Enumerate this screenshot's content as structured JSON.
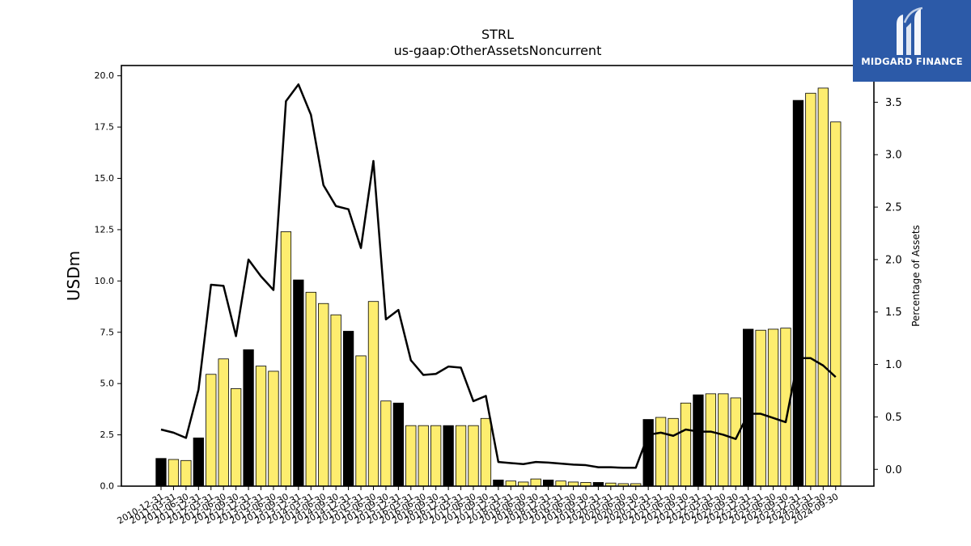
{
  "chart_data": {
    "type": "bar",
    "title": "STRL",
    "subtitle": "us-gaap:OtherAssetsNoncurrent",
    "ylabel": "USDm",
    "y2label": "Percentage of Assets",
    "ylim": [
      0,
      20.5
    ],
    "y2lim": [
      -0.16,
      3.85
    ],
    "yticks": [
      "0.0",
      "2.5",
      "5.0",
      "7.5",
      "10.0",
      "12.5",
      "15.0",
      "17.5",
      "20.0"
    ],
    "y2ticks": [
      "0.0",
      "0.5",
      "1.0",
      "1.5",
      "2.0",
      "2.5",
      "3.0",
      "3.5"
    ],
    "categories": [
      "2010-12-31",
      "2011-03-31",
      "2011-06-30",
      "2011-12-31",
      "2012-03-31",
      "2012-06-30",
      "2012-09-30",
      "2012-12-31",
      "2013-03-31",
      "2013-06-30",
      "2013-09-30",
      "2013-12-31",
      "2014-03-31",
      "2014-06-30",
      "2014-09-30",
      "2014-12-31",
      "2015-03-31",
      "2015-06-30",
      "2015-09-30",
      "2015-12-31",
      "2016-03-31",
      "2016-06-30",
      "2016-09-30",
      "2016-12-31",
      "2017-03-31",
      "2017-06-30",
      "2017-09-30",
      "2017-12-31",
      "2018-03-31",
      "2018-06-30",
      "2018-09-30",
      "2018-12-31",
      "2019-03-31",
      "2019-06-30",
      "2019-09-30",
      "2019-12-31",
      "2020-03-31",
      "2020-06-30",
      "2020-09-30",
      "2020-12-31",
      "2021-03-31",
      "2021-06-30",
      "2021-09-30",
      "2021-12-31",
      "2022-03-31",
      "2022-06-30",
      "2022-09-30",
      "2022-12-31",
      "2023-03-31",
      "2023-06-30",
      "2023-09-30",
      "2023-12-31",
      "2024-03-31",
      "2024-06-30",
      "2024-09-30"
    ],
    "series": [
      {
        "type": "bar",
        "values": [
          1.35,
          1.3,
          1.25,
          2.35,
          5.45,
          6.2,
          4.75,
          6.65,
          5.85,
          5.6,
          12.4,
          10.05,
          9.45,
          8.9,
          8.35,
          7.55,
          6.35,
          9.0,
          4.15,
          4.05,
          2.95,
          2.95,
          2.95,
          2.95,
          2.95,
          2.95,
          3.3,
          0.3,
          0.25,
          0.2,
          0.35,
          0.3,
          0.25,
          0.2,
          0.18,
          0.18,
          0.15,
          0.12,
          0.12,
          3.25,
          3.35,
          3.3,
          4.05,
          4.45,
          4.5,
          4.5,
          4.3,
          7.65,
          7.6,
          7.65,
          7.7,
          18.8,
          19.15,
          19.4,
          17.75
        ],
        "highlight_color": "#000000",
        "color": "#fded6f",
        "highlight_indices": [
          0,
          3,
          7,
          11,
          15,
          19,
          23,
          27,
          31,
          35,
          39,
          43,
          47,
          51
        ]
      },
      {
        "type": "line",
        "axis": "right",
        "color": "#000000",
        "values": [
          0.38,
          0.35,
          0.3,
          0.76,
          1.76,
          1.75,
          1.27,
          2.0,
          1.84,
          1.71,
          3.51,
          3.67,
          3.38,
          2.71,
          2.51,
          2.48,
          2.11,
          2.94,
          1.43,
          1.52,
          1.04,
          0.9,
          0.91,
          0.98,
          0.97,
          0.65,
          0.7,
          0.07,
          0.06,
          0.05,
          0.07,
          0.065,
          0.055,
          0.045,
          0.04,
          0.02,
          0.02,
          0.015,
          0.015,
          0.33,
          0.35,
          0.32,
          0.38,
          0.36,
          0.36,
          0.33,
          0.29,
          0.53,
          0.53,
          0.49,
          0.45,
          1.06,
          1.06,
          0.99,
          0.88
        ]
      }
    ],
    "grid": false,
    "legend": "none"
  },
  "logo": {
    "text": "MIDGARD FINANCE",
    "icon": "midgard-logo-icon",
    "background": "#2c5aa8"
  }
}
